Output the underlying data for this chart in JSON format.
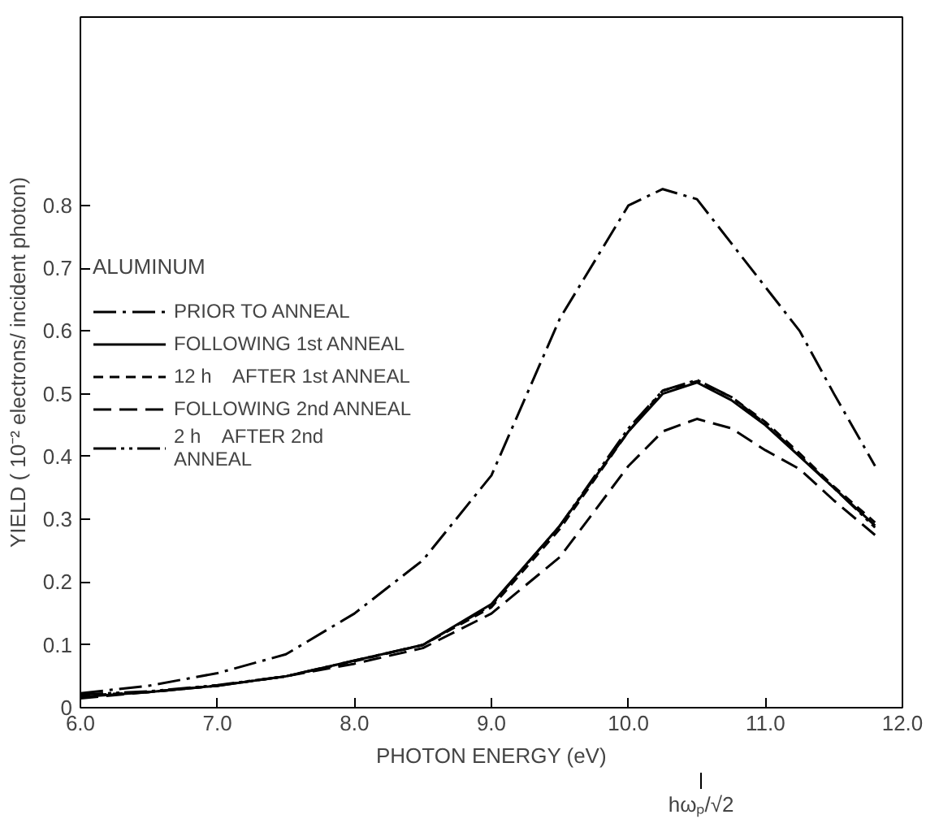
{
  "chart_data": {
    "type": "line",
    "xlabel": "PHOTON ENERGY (eV)",
    "ylabel": "YIELD ( 10⁻² electrons/ incident photon)",
    "legend_title": "ALUMINUM",
    "x": [
      6.0,
      6.5,
      7.0,
      7.5,
      8.0,
      8.5,
      9.0,
      9.5,
      10.0,
      10.25,
      10.5,
      10.75,
      11.0,
      11.25,
      11.5,
      11.8
    ],
    "series": [
      {
        "name": "PRIOR TO ANNEAL",
        "color": "#000000",
        "line_style": "dashdot",
        "values": [
          0.023,
          0.035,
          0.055,
          0.085,
          0.15,
          0.235,
          0.37,
          0.62,
          0.8,
          0.826,
          0.81,
          0.74,
          0.67,
          0.6,
          0.5,
          0.385
        ]
      },
      {
        "name": "FOLLOWING 1st ANNEAL",
        "color": "#000000",
        "line_style": "solid",
        "values": [
          0.017,
          0.025,
          0.035,
          0.05,
          0.075,
          0.1,
          0.165,
          0.29,
          0.44,
          0.5,
          0.518,
          0.49,
          0.45,
          0.4,
          0.35,
          0.29
        ]
      },
      {
        "name": "12 h    AFTER 1st ANNEAL",
        "color": "#000000",
        "line_style": "dashed",
        "values": [
          0.019,
          0.025,
          0.035,
          0.05,
          0.074,
          0.1,
          0.16,
          0.285,
          0.44,
          0.505,
          0.52,
          0.495,
          0.455,
          0.405,
          0.352,
          0.295
        ]
      },
      {
        "name": "FOLLOWING 2nd ANNEAL",
        "color": "#000000",
        "line_style": "longdash",
        "values": [
          0.015,
          0.025,
          0.035,
          0.05,
          0.07,
          0.095,
          0.15,
          0.24,
          0.385,
          0.44,
          0.46,
          0.445,
          0.41,
          0.38,
          0.33,
          0.275
        ]
      },
      {
        "name": "2 h    AFTER 2nd\nANNEAL",
        "color": "#000000",
        "line_style": "dashdotdot",
        "values": [
          0.021,
          0.026,
          0.036,
          0.05,
          0.075,
          0.1,
          0.163,
          0.29,
          0.445,
          0.505,
          0.522,
          0.495,
          0.452,
          0.402,
          0.35,
          0.287
        ]
      }
    ],
    "xlim": [
      6.0,
      12.0
    ],
    "ylim": [
      0,
      1.1
    ],
    "xticks": [
      {
        "value": 6,
        "label": "6.0"
      },
      {
        "value": 7,
        "label": "7.0"
      },
      {
        "value": 8,
        "label": "8.0"
      },
      {
        "value": 9,
        "label": "9.0"
      },
      {
        "value": 10,
        "label": "10.0"
      },
      {
        "value": 11,
        "label": "11.0"
      },
      {
        "value": 12,
        "label": "12.0"
      }
    ],
    "yticks": [
      0,
      0.1,
      0.2,
      0.3,
      0.4,
      0.5,
      0.6,
      0.7,
      0.8
    ],
    "ref_lines": [
      {
        "axis": "x",
        "value": 10.53,
        "label": "hωₚ/√2"
      }
    ],
    "grid": false,
    "legend": "left",
    "marker": "none"
  }
}
